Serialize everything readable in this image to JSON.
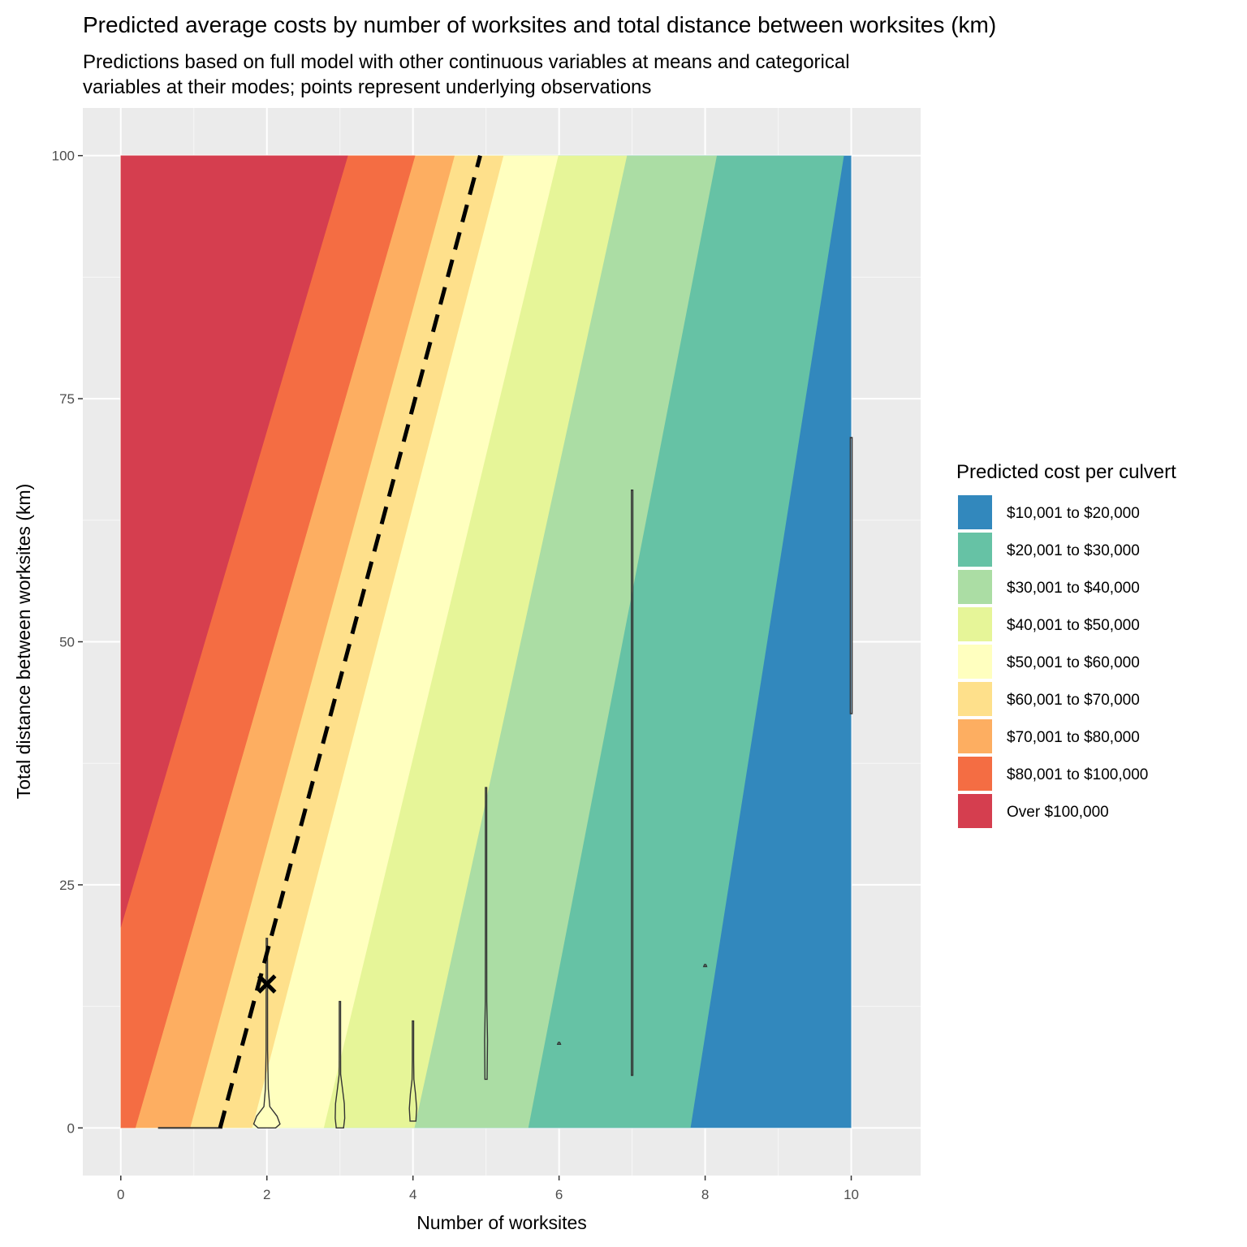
{
  "chart_data": {
    "type": "contour",
    "title": "Predicted average costs by number of worksites and total distance between worksites (km)",
    "subtitle": [
      "Predictions based on full model with other continuous variables at means and categorical",
      "variables at their modes; points represent underlying observations"
    ],
    "xlabel": "Number of worksites",
    "ylabel": "Total distance between worksites (km)",
    "xlim": [
      -0.52,
      10.95
    ],
    "ylim": [
      -4.9,
      104.9
    ],
    "x_ticks": [
      0,
      2,
      4,
      6,
      8,
      10
    ],
    "y_ticks": [
      0,
      25,
      50,
      75,
      100
    ],
    "x_minor": [
      1,
      3,
      5,
      7,
      9
    ],
    "y_minor": [
      12.5,
      37.5,
      62.5,
      87.5
    ],
    "x_tick_labels": [
      "0",
      "2",
      "4",
      "6",
      "8",
      "10"
    ],
    "y_tick_labels": [
      "0",
      "25",
      "50",
      "75",
      "100"
    ],
    "fill_domain": {
      "x": [
        0,
        10
      ],
      "y": [
        0,
        100
      ]
    },
    "legend": {
      "title": "Predicted cost per culvert",
      "position": "right",
      "entries": [
        {
          "label": "$10,001 to $20,000",
          "color": "#3288BD"
        },
        {
          "label": "$20,001 to $30,000",
          "color": "#66C2A5"
        },
        {
          "label": "$30,001 to $40,000",
          "color": "#ABDDA4"
        },
        {
          "label": "$40,001 to $50,000",
          "color": "#E6F598"
        },
        {
          "label": "$50,001 to $60,000",
          "color": "#FFFFBF"
        },
        {
          "label": "$60,001 to $70,000",
          "color": "#FEE08B"
        },
        {
          "label": "$70,001 to $80,000",
          "color": "#FDAE61"
        },
        {
          "label": "$80,001 to $100,000",
          "color": "#F46D43"
        },
        {
          "label": "Over $100,000",
          "color": "#D53E4F"
        }
      ]
    },
    "bands_boundaries": [
      {
        "upper_label": "Over $100,000",
        "x_at_y0": 0.0,
        "y_at_x0": 20.6,
        "x_at_y100": 3.11
      },
      {
        "upper_label": "$80,001 to $100,000",
        "x_at_y0": 0.2,
        "x_at_y100": 4.03
      },
      {
        "upper_label": "$70,001 to $80,000",
        "x_at_y0": 0.95,
        "x_at_y100": 4.57
      },
      {
        "upper_label": "$60,001 to $70,000",
        "x_at_y0": 1.8,
        "x_at_y100": 5.24
      },
      {
        "upper_label": "$50,001 to $60,000",
        "x_at_y0": 2.78,
        "x_at_y100": 5.99
      },
      {
        "upper_label": "$40,001 to $50,000",
        "x_at_y0": 4.02,
        "x_at_y100": 6.93
      },
      {
        "upper_label": "$30,001 to $40,000",
        "x_at_y0": 5.58,
        "x_at_y100": 8.16
      },
      {
        "upper_label": "$20,001 to $30,000",
        "x_at_y0": 7.8,
        "x_at_y100": 9.9
      }
    ],
    "dashed_line": {
      "x": [
        1.36,
        4.92
      ],
      "y": [
        0,
        100
      ]
    },
    "marker_x": {
      "x": 2,
      "y": 14.8
    },
    "violins": [
      {
        "x": 0.95,
        "y_min": 0,
        "y_max": 0.1,
        "max_halfwidth": 0.44
      },
      {
        "x": 2,
        "y_min": 0,
        "y_max": 19.5,
        "profile": [
          [
            0,
            0.12
          ],
          [
            0.4,
            0.18
          ],
          [
            1.2,
            0.14
          ],
          [
            2.2,
            0.04
          ],
          [
            4,
            0.02
          ],
          [
            8,
            0.01
          ],
          [
            19.5,
            0
          ]
        ]
      },
      {
        "x": 3,
        "y_min": 0,
        "y_max": 13,
        "profile": [
          [
            0,
            0.05
          ],
          [
            1,
            0.065
          ],
          [
            2.5,
            0.06
          ],
          [
            4,
            0.035
          ],
          [
            5.5,
            0.01
          ],
          [
            8,
            0.005
          ],
          [
            13,
            0
          ]
        ]
      },
      {
        "x": 4,
        "y_min": 0.7,
        "y_max": 11,
        "profile": [
          [
            0.7,
            0.04
          ],
          [
            2,
            0.05
          ],
          [
            3.5,
            0.035
          ],
          [
            5,
            0.012
          ],
          [
            7,
            0.006
          ],
          [
            11,
            0
          ]
        ]
      },
      {
        "x": 5,
        "y_min": 5,
        "y_max": 35,
        "profile": [
          [
            5,
            0.015
          ],
          [
            9,
            0.02
          ],
          [
            13,
            0.01
          ],
          [
            20,
            0.006
          ],
          [
            30,
            0.006
          ],
          [
            35,
            0
          ]
        ]
      },
      {
        "x": 6,
        "y_min": 8.6,
        "y_max": 8.8,
        "profile": [
          [
            8.6,
            0.02
          ],
          [
            8.8,
            0
          ]
        ]
      },
      {
        "x": 7,
        "y_min": 5.4,
        "y_max": 65.6,
        "profile": [
          [
            5.4,
            0.01
          ],
          [
            65.6,
            0.01
          ]
        ]
      },
      {
        "x": 8,
        "y_min": 16.6,
        "y_max": 16.8,
        "profile": [
          [
            16.6,
            0.02
          ],
          [
            16.8,
            0
          ]
        ]
      },
      {
        "x": 10,
        "y_min": 42.6,
        "y_max": 71,
        "profile": [
          [
            42.6,
            0.012
          ],
          [
            71,
            0.012
          ]
        ]
      }
    ]
  }
}
